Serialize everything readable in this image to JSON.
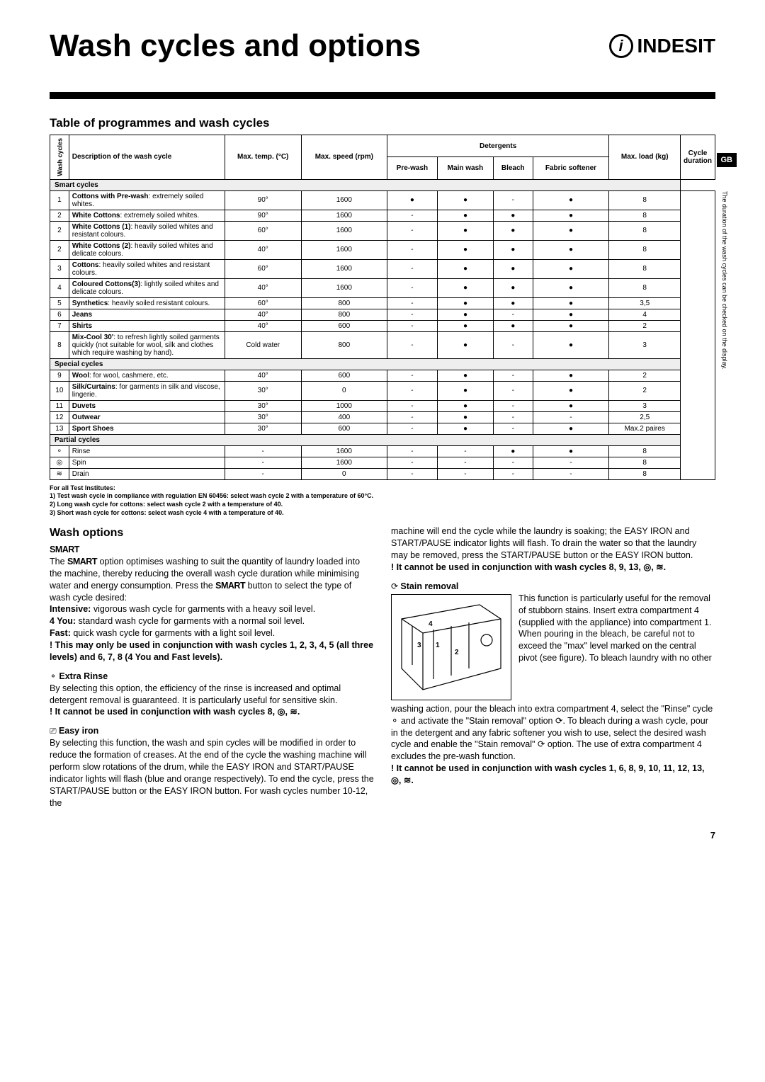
{
  "header": {
    "title": "Wash cycles and options",
    "brand": "INDESIT"
  },
  "gb_label": "GB",
  "table_title": "Table of programmes and wash cycles",
  "table": {
    "headers": {
      "cycle": "Wash cycles",
      "desc": "Description of the wash cycle",
      "temp": "Max. temp. (°C)",
      "speed": "Max. speed (rpm)",
      "detergents": "Detergents",
      "prewash": "Pre-wash",
      "mainwash": "Main wash",
      "bleach": "Bleach",
      "softener": "Fabric softener",
      "load": "Max. load (kg)",
      "duration": "Cycle duration"
    },
    "sections": [
      {
        "label": "Smart cycles",
        "rows": [
          {
            "n": "1",
            "desc": "<b>Cottons with Pre-wash</b>: extremely soiled whites.",
            "temp": "90°",
            "speed": "1600",
            "pw": "●",
            "mw": "●",
            "bl": "-",
            "fs": "●",
            "load": "8"
          },
          {
            "n": "2",
            "desc": "<b>White Cottons</b>: extremely soiled whites.",
            "temp": "90°",
            "speed": "1600",
            "pw": "-",
            "mw": "●",
            "bl": "●",
            "fs": "●",
            "load": "8"
          },
          {
            "n": "2",
            "desc": "<b>White Cottons (1)</b>: heavily soiled whites and resistant colours.",
            "temp": "60°",
            "speed": "1600",
            "pw": "-",
            "mw": "●",
            "bl": "●",
            "fs": "●",
            "load": "8"
          },
          {
            "n": "2",
            "desc": "<b>White Cottons (2)</b>: heavily soiled whites and delicate colours.",
            "temp": "40°",
            "speed": "1600",
            "pw": "-",
            "mw": "●",
            "bl": "●",
            "fs": "●",
            "load": "8"
          },
          {
            "n": "3",
            "desc": "<b>Cottons</b>: heavily soiled whites and resistant colours.",
            "temp": "60°",
            "speed": "1600",
            "pw": "-",
            "mw": "●",
            "bl": "●",
            "fs": "●",
            "load": "8"
          },
          {
            "n": "4",
            "desc": "<b>Coloured Cottons(3)</b>: lightly soiled whites and delicate colours.",
            "temp": "40°",
            "speed": "1600",
            "pw": "-",
            "mw": "●",
            "bl": "●",
            "fs": "●",
            "load": "8"
          },
          {
            "n": "5",
            "desc": "<b>Synthetics</b>: heavily soiled resistant colours.",
            "temp": "60°",
            "speed": "800",
            "pw": "-",
            "mw": "●",
            "bl": "●",
            "fs": "●",
            "load": "3,5"
          },
          {
            "n": "6",
            "desc": "<b>Jeans</b>",
            "temp": "40°",
            "speed": "800",
            "pw": "-",
            "mw": "●",
            "bl": "-",
            "fs": "●",
            "load": "4"
          },
          {
            "n": "7",
            "desc": "<b>Shirts</b>",
            "temp": "40°",
            "speed": "600",
            "pw": "-",
            "mw": "●",
            "bl": "●",
            "fs": "●",
            "load": "2"
          },
          {
            "n": "8",
            "desc": "<b>Mix-Cool 30'</b>: to refresh lightly soiled garments quickly (not suitable for wool, silk and clothes which require washing by hand).",
            "temp": "Cold water",
            "speed": "800",
            "pw": "-",
            "mw": "●",
            "bl": "-",
            "fs": "●",
            "load": "3"
          }
        ]
      },
      {
        "label": "Special cycles",
        "rows": [
          {
            "n": "9",
            "desc": "<b>Wool</b>: for wool, cashmere, etc.",
            "temp": "40°",
            "speed": "600",
            "pw": "-",
            "mw": "●",
            "bl": "-",
            "fs": "●",
            "load": "2"
          },
          {
            "n": "10",
            "desc": "<b>Silk/Curtains</b>: for garments in silk and viscose, lingerie.",
            "temp": "30°",
            "speed": "0",
            "pw": "-",
            "mw": "●",
            "bl": "-",
            "fs": "●",
            "load": "2"
          },
          {
            "n": "11",
            "desc": "<b>Duvets</b>",
            "temp": "30°",
            "speed": "1000",
            "pw": "-",
            "mw": "●",
            "bl": "-",
            "fs": "●",
            "load": "3"
          },
          {
            "n": "12",
            "desc": "<b>Outwear</b>",
            "temp": "30°",
            "speed": "400",
            "pw": "-",
            "mw": "●",
            "bl": "-",
            "fs": "-",
            "load": "2,5"
          },
          {
            "n": "13",
            "desc": "<b>Sport Shoes</b>",
            "temp": "30°",
            "speed": "600",
            "pw": "-",
            "mw": "●",
            "bl": "-",
            "fs": "●",
            "load": "Max.2 paires"
          }
        ]
      },
      {
        "label": "Partial cycles",
        "rows": [
          {
            "n": "⚬",
            "desc": "Rinse",
            "temp": "-",
            "speed": "1600",
            "pw": "-",
            "mw": "-",
            "bl": "●",
            "fs": "●",
            "load": "8"
          },
          {
            "n": "◎",
            "desc": "Spin",
            "temp": "-",
            "speed": "1600",
            "pw": "-",
            "mw": "-",
            "bl": "-",
            "fs": "-",
            "load": "8"
          },
          {
            "n": "≋",
            "desc": "Drain",
            "temp": "-",
            "speed": "0",
            "pw": "-",
            "mw": "-",
            "bl": "-",
            "fs": "-",
            "load": "8"
          }
        ]
      }
    ],
    "duration_note": "The duration of the wash cycles can be checked on the display."
  },
  "footnotes": [
    "For all Test Institutes:",
    "1) Test wash cycle in compliance with regulation EN 60456: select wash cycle 2 with a temperature of 60°C.",
    "2) Long wash cycle for cottons: select wash cycle 2 with a temperature of 40.",
    "3) Short wash cycle for cottons: select wash cycle 4 with a temperature of 40."
  ],
  "wash_options": {
    "title": "Wash options",
    "smart_label": "SMART",
    "smart_body1": "The ",
    "smart_body2": " option optimises washing to suit the quantity of laundry loaded into the machine, thereby reducing the overall wash cycle duration while minimising water and energy consumption. Press the ",
    "smart_body3": " button to select the type of wash cycle desired:",
    "intensive": "Intensive:",
    "intensive_text": " vigorous wash cycle for garments with a heavy soil level.",
    "four_you": "4 You:",
    "four_you_text": " standard wash cycle for garments with a normal soil level.",
    "fast": "Fast:",
    "fast_text": " quick wash cycle for garments with a light soil level.",
    "smart_warn": "! This may only be used in conjunction with wash cycles 1, 2, 3, 4, 5 (all three levels) and 6, 7, 8 (4 You and Fast levels).",
    "extra_rinse_title": "Extra Rinse",
    "extra_rinse_body": "By selecting this option, the efficiency of the rinse is increased and optimal detergent removal is guaranteed. It is particularly useful for sensitive skin.",
    "extra_rinse_warn": "! It cannot be used in conjunction with wash cycles 8, ◎, ≋.",
    "easy_iron_title": "Easy iron",
    "easy_iron_body": "By selecting this function, the wash and spin cycles will be modified in order to reduce the formation of creases. At the end of the cycle the washing machine will perform slow rotations of the drum, while the EASY IRON and START/PAUSE indicator lights will flash (blue and orange respectively). To end the cycle, press the START/PAUSE button or the EASY IRON button. For wash cycles number 10-12, the",
    "easy_iron_cont": "machine will end the cycle while the laundry is soaking; the EASY IRON and START/PAUSE indicator lights will flash. To drain the water so that the laundry may be removed, press the START/PAUSE button or the EASY IRON button.",
    "easy_iron_warn": "! It cannot be used in conjunction with wash cycles 8, 9, 13, ◎, ≋.",
    "stain_title": "Stain removal",
    "stain_body": "This function is particularly useful for the removal of stubborn stains. Insert extra compartment 4 (supplied with the appliance) into compartment 1. When pouring in the bleach, be careful not to exceed the \"max\" level marked on the central pivot (see figure). To bleach laundry with no other",
    "stain_cont": "washing action, pour the bleach into extra compartment 4, select the \"Rinse\" cycle ⚬ and activate the \"Stain removal\" option ⟳. To bleach during a wash cycle, pour in the detergent and any fabric softener you wish to use, select the desired wash cycle and enable the \"Stain removal\" ⟳ option. The use of extra compartment 4 excludes the pre-wash function.",
    "stain_warn": "! It cannot be used in conjunction with wash cycles 1, 6, 8, 9, 10, 11, 12, 13, ◎, ≋."
  },
  "page_number": "7"
}
